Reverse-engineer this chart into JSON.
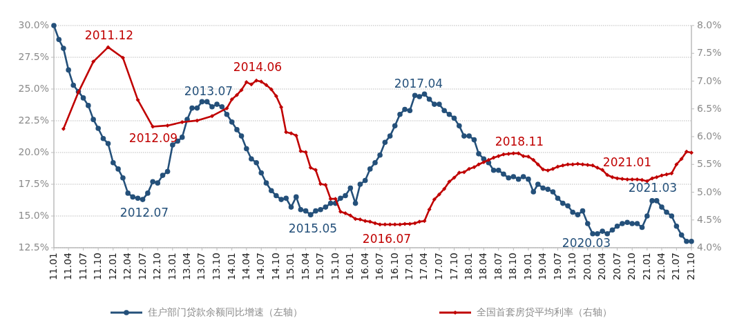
{
  "chart_data": {
    "type": "line",
    "x": [
      "2011-01",
      "2011-02",
      "2011-03",
      "2011-04",
      "2011-05",
      "2011-06",
      "2011-07",
      "2011-08",
      "2011-09",
      "2011-10",
      "2011-11",
      "2011-12",
      "2012-01",
      "2012-02",
      "2012-03",
      "2012-04",
      "2012-05",
      "2012-06",
      "2012-07",
      "2012-08",
      "2012-09",
      "2012-10",
      "2012-11",
      "2012-12",
      "2013-01",
      "2013-02",
      "2013-03",
      "2013-04",
      "2013-05",
      "2013-06",
      "2013-07",
      "2013-08",
      "2013-09",
      "2013-10",
      "2013-11",
      "2013-12",
      "2014-01",
      "2014-02",
      "2014-03",
      "2014-04",
      "2014-05",
      "2014-06",
      "2014-07",
      "2014-08",
      "2014-09",
      "2014-10",
      "2014-11",
      "2014-12",
      "2015-01",
      "2015-02",
      "2015-03",
      "2015-04",
      "2015-05",
      "2015-06",
      "2015-07",
      "2015-08",
      "2015-09",
      "2015-10",
      "2015-11",
      "2015-12",
      "2016-01",
      "2016-02",
      "2016-03",
      "2016-04",
      "2016-05",
      "2016-06",
      "2016-07",
      "2016-08",
      "2016-09",
      "2016-10",
      "2016-11",
      "2016-12",
      "2017-01",
      "2017-02",
      "2017-03",
      "2017-04",
      "2017-05",
      "2017-06",
      "2017-07",
      "2017-08",
      "2017-09",
      "2017-10",
      "2017-11",
      "2017-12",
      "2018-01",
      "2018-02",
      "2018-03",
      "2018-04",
      "2018-05",
      "2018-06",
      "2018-07",
      "2018-08",
      "2018-09",
      "2018-10",
      "2018-11",
      "2018-12",
      "2019-01",
      "2019-02",
      "2019-03",
      "2019-04",
      "2019-05",
      "2019-06",
      "2019-07",
      "2019-08",
      "2019-09",
      "2019-10",
      "2019-11",
      "2019-12",
      "2020-01",
      "2020-02",
      "2020-03",
      "2020-04",
      "2020-05",
      "2020-06",
      "2020-07",
      "2020-08",
      "2020-09",
      "2020-10",
      "2020-11",
      "2020-12",
      "2021-01",
      "2021-02",
      "2021-03",
      "2021-04",
      "2021-05",
      "2021-06",
      "2021-07",
      "2021-08",
      "2021-09",
      "2021-10"
    ],
    "series": [
      {
        "name": "住户部门贷款余额同比增速（左轴）",
        "color": "#24507a",
        "marker": "circle",
        "values": [
          30.0,
          28.9,
          28.2,
          26.5,
          25.3,
          24.8,
          24.3,
          23.7,
          22.6,
          21.9,
          21.1,
          20.7,
          19.2,
          18.7,
          18.0,
          16.8,
          16.5,
          16.4,
          16.3,
          16.8,
          17.7,
          17.6,
          18.2,
          18.5,
          20.6,
          20.9,
          21.2,
          22.6,
          23.5,
          23.5,
          24.0,
          24.0,
          23.6,
          23.8,
          23.6,
          23.0,
          22.4,
          21.8,
          21.3,
          20.3,
          19.5,
          19.2,
          18.4,
          17.6,
          17.0,
          16.6,
          16.3,
          16.4,
          15.7,
          16.5,
          15.5,
          15.4,
          15.1,
          15.4,
          15.5,
          15.7,
          16.0,
          16.0,
          16.4,
          16.6,
          17.2,
          16.0,
          17.5,
          17.8,
          18.7,
          19.2,
          19.8,
          20.8,
          21.3,
          22.1,
          23.0,
          23.4,
          23.3,
          24.5,
          24.4,
          24.6,
          24.2,
          23.8,
          23.8,
          23.3,
          23.0,
          22.7,
          22.1,
          21.3,
          21.3,
          21.0,
          19.9,
          19.5,
          19.2,
          18.6,
          18.6,
          18.3,
          18.0,
          18.1,
          17.9,
          18.1,
          17.9,
          16.9,
          17.5,
          17.2,
          17.1,
          16.9,
          16.4,
          16.0,
          15.8,
          15.3,
          15.1,
          15.4,
          14.4,
          13.6,
          13.6,
          13.8,
          13.6,
          13.9,
          14.2,
          14.4,
          14.5,
          14.4,
          14.4,
          14.1,
          15.0,
          16.2,
          16.2,
          15.7,
          15.3,
          15.0,
          14.2,
          13.5,
          13.0,
          13.0
        ]
      },
      {
        "name": "全国首套房贷平均利率（右轴）",
        "color": "#c00000",
        "marker": "diamond",
        "axis": "y2",
        "x": [
          "2011-03",
          "2011-06",
          "2011-09",
          "2011-12",
          "2012-03",
          "2012-06",
          "2012-09",
          "2012-12",
          "2013-03",
          "2013-06",
          "2013-09",
          "2013-12",
          "2014-01",
          "2014-02",
          "2014-03",
          "2014-04",
          "2014-05",
          "2014-06",
          "2014-07",
          "2014-08",
          "2014-09",
          "2014-10",
          "2014-11",
          "2014-12",
          "2015-01",
          "2015-02",
          "2015-03",
          "2015-04",
          "2015-05",
          "2015-06",
          "2015-07",
          "2015-08",
          "2015-09",
          "2015-10",
          "2015-11",
          "2015-12",
          "2016-01",
          "2016-02",
          "2016-03",
          "2016-04",
          "2016-05",
          "2016-06",
          "2016-07",
          "2016-08",
          "2016-09",
          "2016-10",
          "2016-11",
          "2016-12",
          "2017-01",
          "2017-02",
          "2017-03",
          "2017-04",
          "2017-05",
          "2017-06",
          "2017-07",
          "2017-08",
          "2017-09",
          "2017-10",
          "2017-11",
          "2017-12",
          "2018-01",
          "2018-02",
          "2018-03",
          "2018-04",
          "2018-05",
          "2018-06",
          "2018-07",
          "2018-08",
          "2018-09",
          "2018-10",
          "2018-11",
          "2018-12",
          "2019-01",
          "2019-02",
          "2019-03",
          "2019-04",
          "2019-05",
          "2019-06",
          "2019-07",
          "2019-08",
          "2019-09",
          "2019-10",
          "2019-11",
          "2019-12",
          "2020-01",
          "2020-02",
          "2020-03",
          "2020-04",
          "2020-05",
          "2020-06",
          "2020-07",
          "2020-08",
          "2020-09",
          "2020-10",
          "2020-11",
          "2020-12",
          "2021-01",
          "2021-02",
          "2021-03",
          "2021-04",
          "2021-05",
          "2021-06",
          "2021-07",
          "2021-08",
          "2021-09",
          "2021-10"
        ],
        "values": [
          6.14,
          6.8,
          7.35,
          7.61,
          7.42,
          6.66,
          6.18,
          6.2,
          6.26,
          6.29,
          6.37,
          6.51,
          6.67,
          6.75,
          6.84,
          6.98,
          6.94,
          7.01,
          6.99,
          6.93,
          6.85,
          6.73,
          6.53,
          6.08,
          6.06,
          6.02,
          5.74,
          5.72,
          5.44,
          5.4,
          5.15,
          5.13,
          4.88,
          4.88,
          4.65,
          4.62,
          4.58,
          4.52,
          4.51,
          4.48,
          4.47,
          4.44,
          4.42,
          4.42,
          4.42,
          4.42,
          4.42,
          4.43,
          4.43,
          4.44,
          4.47,
          4.48,
          4.69,
          4.87,
          4.96,
          5.06,
          5.19,
          5.26,
          5.35,
          5.36,
          5.42,
          5.45,
          5.5,
          5.54,
          5.58,
          5.62,
          5.65,
          5.68,
          5.69,
          5.7,
          5.7,
          5.65,
          5.64,
          5.58,
          5.5,
          5.41,
          5.39,
          5.42,
          5.46,
          5.48,
          5.5,
          5.5,
          5.51,
          5.5,
          5.49,
          5.48,
          5.44,
          5.4,
          5.31,
          5.27,
          5.25,
          5.24,
          5.23,
          5.23,
          5.23,
          5.22,
          5.2,
          5.25,
          5.27,
          5.3,
          5.32,
          5.34,
          5.5,
          5.6,
          5.73,
          5.71
        ]
      }
    ],
    "xlim": [
      "2011-01",
      "2021-10"
    ],
    "xticks": [
      {
        "value": "2011-01",
        "label": "11.01"
      },
      {
        "value": "2011-04",
        "label": "11.04"
      },
      {
        "value": "2011-07",
        "label": "11.07"
      },
      {
        "value": "2011-10",
        "label": "11.10"
      },
      {
        "value": "2012-01",
        "label": "12.01"
      },
      {
        "value": "2012-04",
        "label": "12.04"
      },
      {
        "value": "2012-07",
        "label": "12.07"
      },
      {
        "value": "2012-10",
        "label": "12.10"
      },
      {
        "value": "2013-01",
        "label": "13.01"
      },
      {
        "value": "2013-04",
        "label": "13.04"
      },
      {
        "value": "2013-07",
        "label": "13.07"
      },
      {
        "value": "2013-10",
        "label": "13.10"
      },
      {
        "value": "2014-01",
        "label": "14.01"
      },
      {
        "value": "2014-04",
        "label": "14.04"
      },
      {
        "value": "2014-07",
        "label": "14.07"
      },
      {
        "value": "2014-10",
        "label": "14.10"
      },
      {
        "value": "2015-01",
        "label": "15.01"
      },
      {
        "value": "2015-04",
        "label": "15.04"
      },
      {
        "value": "2015-07",
        "label": "15.07"
      },
      {
        "value": "2015-10",
        "label": "15.10"
      },
      {
        "value": "2016-01",
        "label": "16.01"
      },
      {
        "value": "2016-04",
        "label": "16.04"
      },
      {
        "value": "2016-07",
        "label": "16.07"
      },
      {
        "value": "2016-10",
        "label": "16.10"
      },
      {
        "value": "2017-01",
        "label": "17.01"
      },
      {
        "value": "2017-04",
        "label": "17.04"
      },
      {
        "value": "2017-07",
        "label": "17.07"
      },
      {
        "value": "2017-10",
        "label": "17.10"
      },
      {
        "value": "2018-01",
        "label": "18.01"
      },
      {
        "value": "2018-04",
        "label": "18.04"
      },
      {
        "value": "2018-07",
        "label": "18.07"
      },
      {
        "value": "2018-10",
        "label": "18.10"
      },
      {
        "value": "2019-01",
        "label": "19.01"
      },
      {
        "value": "2019-04",
        "label": "19.04"
      },
      {
        "value": "2019-07",
        "label": "19.07"
      },
      {
        "value": "2019-10",
        "label": "19.10"
      },
      {
        "value": "2020-01",
        "label": "20.01"
      },
      {
        "value": "2020-04",
        "label": "20.04"
      },
      {
        "value": "2020-07",
        "label": "20.07"
      },
      {
        "value": "2020-10",
        "label": "20.10"
      },
      {
        "value": "2021-01",
        "label": "21.01"
      },
      {
        "value": "2021-04",
        "label": "21.04"
      },
      {
        "value": "2021-07",
        "label": "21.07"
      },
      {
        "value": "2021-10",
        "label": "21.10"
      }
    ],
    "ylim": [
      12.5,
      30
    ],
    "yticks": [
      {
        "value": 12.5,
        "label": "12.5%"
      },
      {
        "value": 15,
        "label": "15.0%"
      },
      {
        "value": 17.5,
        "label": "17.5%"
      },
      {
        "value": 20,
        "label": "20.0%"
      },
      {
        "value": 22.5,
        "label": "22.5%"
      },
      {
        "value": 25,
        "label": "25.0%"
      },
      {
        "value": 27.5,
        "label": "27.5%"
      },
      {
        "value": 30,
        "label": "30.0%"
      }
    ],
    "y2lim": [
      4,
      8
    ],
    "y2ticks": [
      {
        "value": 4,
        "label": "4.0%"
      },
      {
        "value": 4.5,
        "label": "4.5%"
      },
      {
        "value": 5,
        "label": "5.0%"
      },
      {
        "value": 5.5,
        "label": "5.5%"
      },
      {
        "value": 6,
        "label": "6.0%"
      },
      {
        "value": 6.5,
        "label": "6.5%"
      },
      {
        "value": 7,
        "label": "7.0%"
      },
      {
        "value": 7.5,
        "label": "7.5%"
      },
      {
        "value": 8,
        "label": "8.0%"
      }
    ],
    "grid": "y",
    "legend": "bottom",
    "annotations": [
      "2011.12",
      "2012.09",
      "2012.07",
      "2013.07",
      "2014.06",
      "2015.05",
      "2016.07",
      "2017.04",
      "2018.11",
      "2021.03",
      "2021.01",
      "2020.03"
    ]
  }
}
